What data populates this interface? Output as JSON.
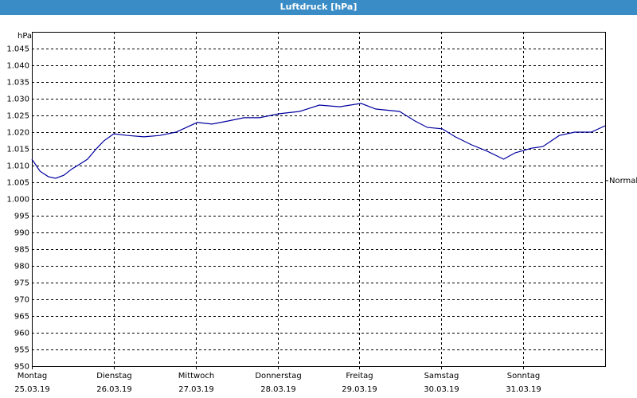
{
  "chart_data": {
    "type": "line",
    "title": "Luftdruck [hPa]",
    "y_unit_label": "hPa",
    "x": [
      0,
      0.1,
      0.2,
      0.29,
      0.39,
      0.49,
      0.59,
      0.68,
      0.78,
      0.88,
      1,
      1.17,
      1.37,
      1.56,
      1.76,
      2.02,
      2.2,
      2.39,
      2.59,
      2.78,
      3.02,
      3.27,
      3.51,
      3.76,
      4.02,
      4.2,
      4.49,
      4.68,
      4.83,
      5.01,
      5.17,
      5.37,
      5.56,
      5.76,
      5.9,
      6.1,
      6.24,
      6.44,
      6.63,
      6.83,
      7
    ],
    "series": [
      {
        "color": "#0000a0",
        "values": [
          1011.9,
          1008.3,
          1006.7,
          1006.2,
          1007.1,
          1009,
          1010.5,
          1011.9,
          1014.8,
          1017.4,
          1019.5,
          1019,
          1018.6,
          1019,
          1020,
          1022.9,
          1022.4,
          1023.3,
          1024.3,
          1024.3,
          1025.5,
          1026.2,
          1028.1,
          1027.6,
          1028.6,
          1026.9,
          1026.2,
          1023.3,
          1021.4,
          1021,
          1018.6,
          1016.2,
          1014.3,
          1011.9,
          1013.8,
          1015.2,
          1015.7,
          1019,
          1020,
          1020,
          1021.9
        ]
      }
    ],
    "xlim": [
      0,
      7
    ],
    "xticks": [
      {
        "value": 0,
        "label": "Montag"
      },
      {
        "value": 1,
        "label": "Dienstag"
      },
      {
        "value": 2,
        "label": "Mittwoch"
      },
      {
        "value": 3,
        "label": "Donnerstag"
      },
      {
        "value": 4,
        "label": "Freitag"
      },
      {
        "value": 5,
        "label": "Samstag"
      },
      {
        "value": 6,
        "label": "Sonntag"
      },
      7
    ],
    "xtick_dates": [
      "25.03.19",
      "26.03.19",
      "27.03.19",
      "28.03.19",
      "29.03.19",
      "30.03.19",
      "31.03.19"
    ],
    "ylim": [
      950,
      1050
    ],
    "yticks": [
      950,
      955,
      960,
      965,
      970,
      975,
      980,
      985,
      990,
      995,
      {
        "value": 1000,
        "label": "1.000"
      },
      {
        "value": 1005,
        "label": "1.005"
      },
      {
        "value": 1010,
        "label": "1.010"
      },
      {
        "value": 1015,
        "label": "1.015"
      },
      {
        "value": 1020,
        "label": "1.020"
      },
      {
        "value": 1025,
        "label": "1.025"
      },
      {
        "value": 1030,
        "label": "1.030"
      },
      {
        "value": 1035,
        "label": "1.035"
      },
      {
        "value": 1040,
        "label": "1.040"
      },
      {
        "value": 1045,
        "label": "1.045"
      }
    ],
    "grid": true,
    "reference": {
      "label": "Normal",
      "value": 1005.5
    }
  }
}
